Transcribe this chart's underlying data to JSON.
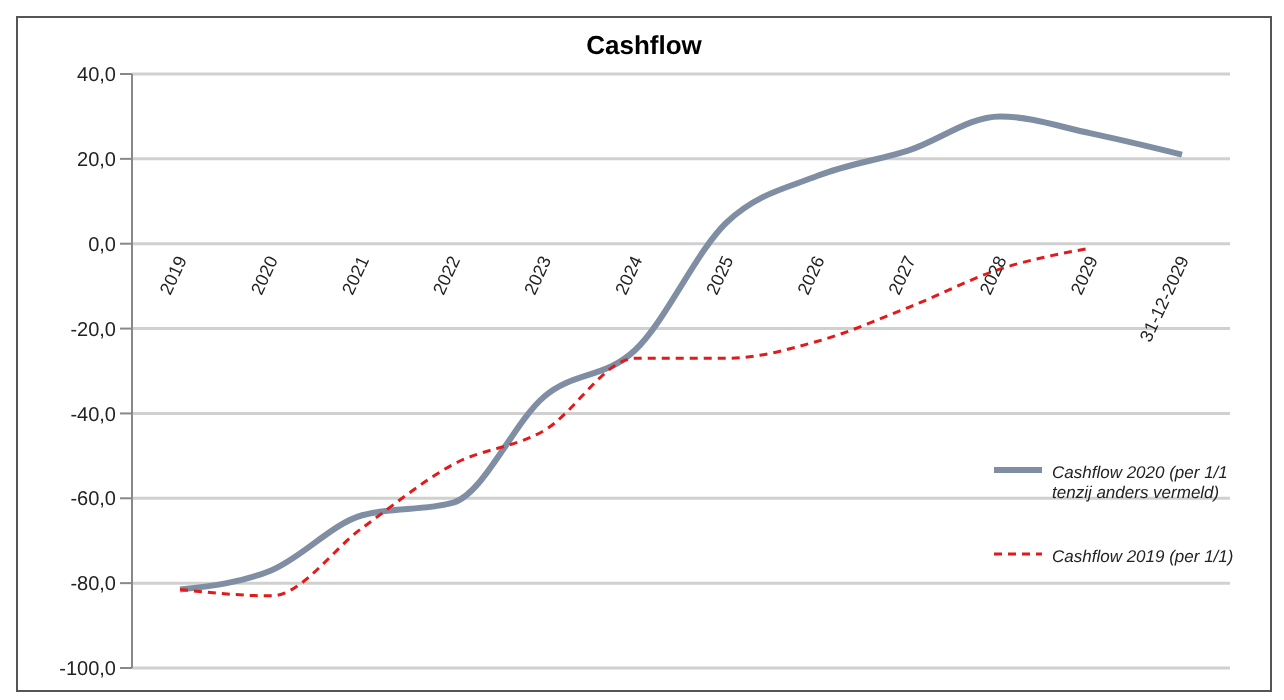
{
  "chart_data": {
    "type": "line",
    "title": "Cashflow",
    "categories": [
      "2019",
      "2020",
      "2021",
      "2022",
      "2023",
      "2024",
      "2025",
      "2026",
      "2027",
      "2028",
      "2029",
      "31-12-2029"
    ],
    "series": [
      {
        "name": "Cashflow  2020 (per 1/1 tenzij anders vermeld)",
        "color": "#7f8ea3",
        "line_style": "solid",
        "values": [
          -81.5,
          -77,
          -64,
          -61,
          -36,
          -25,
          5,
          16,
          22,
          30,
          26,
          21
        ]
      },
      {
        "name": "Cashflow  2019 (per 1/1)",
        "color": "#e31a1c",
        "line_style": "dashed",
        "values": [
          -81.5,
          -83,
          -67,
          -52,
          -44,
          -27,
          -27,
          -23,
          -15,
          -6,
          -1,
          null
        ]
      }
    ],
    "ylim": [
      -100,
      40
    ],
    "yticks": [
      {
        "value": -100,
        "label": "-100,0"
      },
      {
        "value": -80,
        "label": "-80,0"
      },
      {
        "value": -60,
        "label": "-60,0"
      },
      {
        "value": -40,
        "label": "-40,0"
      },
      {
        "value": -20,
        "label": "-20,0"
      },
      {
        "value": 0,
        "label": "0,0"
      },
      {
        "value": 20,
        "label": "20,0"
      },
      {
        "value": 40,
        "label": "40,0"
      }
    ],
    "grid": "y",
    "legend": "bottom right",
    "marker": "none"
  }
}
